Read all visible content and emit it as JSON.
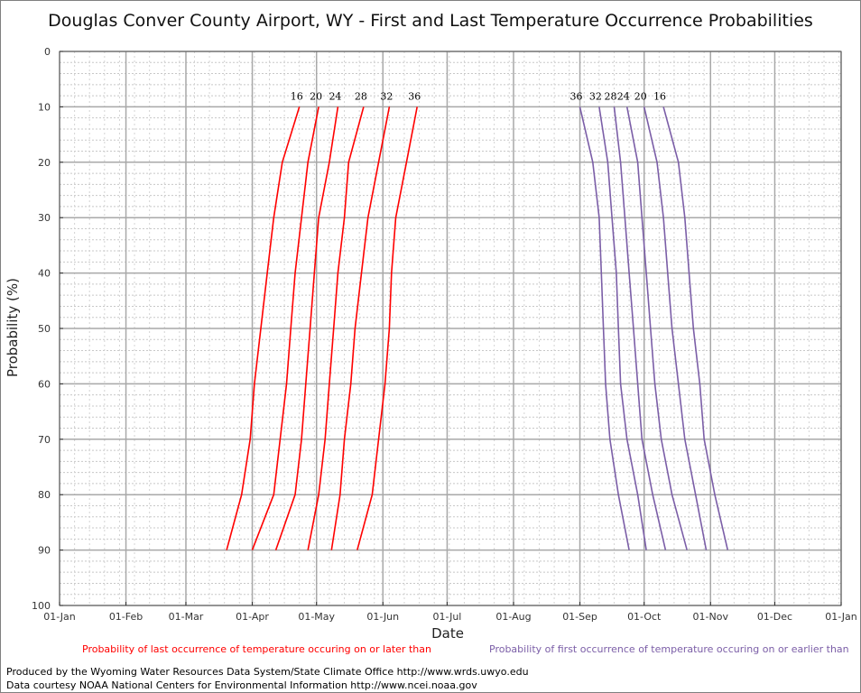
{
  "chart_data": {
    "type": "line",
    "title": "Douglas Conver County Airport, WY - First and Last Temperature Occurrence Probabilities",
    "xlabel": "Date",
    "ylabel": "Probability (%)",
    "x_tick_labels": [
      "01-Jan",
      "01-Feb",
      "01-Mar",
      "01-Apr",
      "01-May",
      "01-Jun",
      "01-Jul",
      "01-Aug",
      "01-Sep",
      "01-Oct",
      "01-Nov",
      "01-Dec",
      "01-Jan"
    ],
    "x_tick_days": [
      0,
      31,
      59,
      90,
      120,
      151,
      181,
      212,
      243,
      273,
      304,
      334,
      365
    ],
    "xlim": [
      0,
      365
    ],
    "y_ticks": [
      0,
      10,
      20,
      30,
      40,
      50,
      60,
      70,
      80,
      90,
      100
    ],
    "ylim": [
      0,
      100
    ],
    "y_inverted": true,
    "grid": true,
    "probabilities": [
      10,
      20,
      30,
      40,
      50,
      60,
      70,
      80,
      90
    ],
    "last_occurrence": {
      "legend": "Probability of last occurrence of temperature occuring on or later than",
      "color": "#ff0000",
      "series": [
        {
          "name": "16",
          "days": [
            112,
            104,
            100,
            97,
            94,
            91,
            89,
            85,
            78
          ]
        },
        {
          "name": "20",
          "days": [
            121,
            116,
            113,
            110,
            108,
            106,
            103,
            100,
            90
          ]
        },
        {
          "name": "24",
          "days": [
            130,
            126,
            121,
            119,
            117,
            115,
            113,
            110,
            101
          ]
        },
        {
          "name": "28",
          "days": [
            142,
            135,
            133,
            130,
            128,
            126,
            124,
            121,
            116
          ]
        },
        {
          "name": "32",
          "days": [
            154,
            149,
            144,
            141,
            138,
            136,
            133,
            131,
            127
          ]
        },
        {
          "name": "36",
          "days": [
            167,
            162,
            157,
            155,
            154,
            152,
            149,
            146,
            139
          ]
        }
      ]
    },
    "first_occurrence": {
      "legend": "Probability of first occurrence of temperature occuring on or earlier than",
      "color": "#7b5ea7",
      "series": [
        {
          "name": "36",
          "days": [
            243,
            249,
            252,
            253,
            254,
            255,
            257,
            261,
            266
          ]
        },
        {
          "name": "32",
          "days": [
            252,
            256,
            258,
            260,
            261,
            262,
            265,
            270,
            274
          ]
        },
        {
          "name": "28",
          "days": [
            259,
            262,
            264,
            266,
            268,
            270,
            272,
            277,
            283
          ]
        },
        {
          "name": "24",
          "days": [
            265,
            270,
            272,
            274,
            276,
            278,
            281,
            286,
            293
          ]
        },
        {
          "name": "20",
          "days": [
            273,
            279,
            282,
            284,
            286,
            289,
            292,
            297,
            302
          ]
        },
        {
          "name": "16",
          "days": [
            282,
            289,
            292,
            294,
            296,
            299,
            301,
            306,
            312
          ]
        }
      ]
    },
    "label_order": {
      "last": [
        "16",
        "20",
        "24",
        "28",
        "32",
        "36"
      ],
      "first": [
        "36",
        "32",
        "28",
        "24",
        "20",
        "16"
      ]
    }
  },
  "credits": {
    "line1": "Produced by the Wyoming Water Resources Data System/State Climate Office http://www.wrds.uwyo.edu",
    "line2": "Data courtesy NOAA National Centers for Environmental Information http://www.ncei.noaa.gov"
  }
}
